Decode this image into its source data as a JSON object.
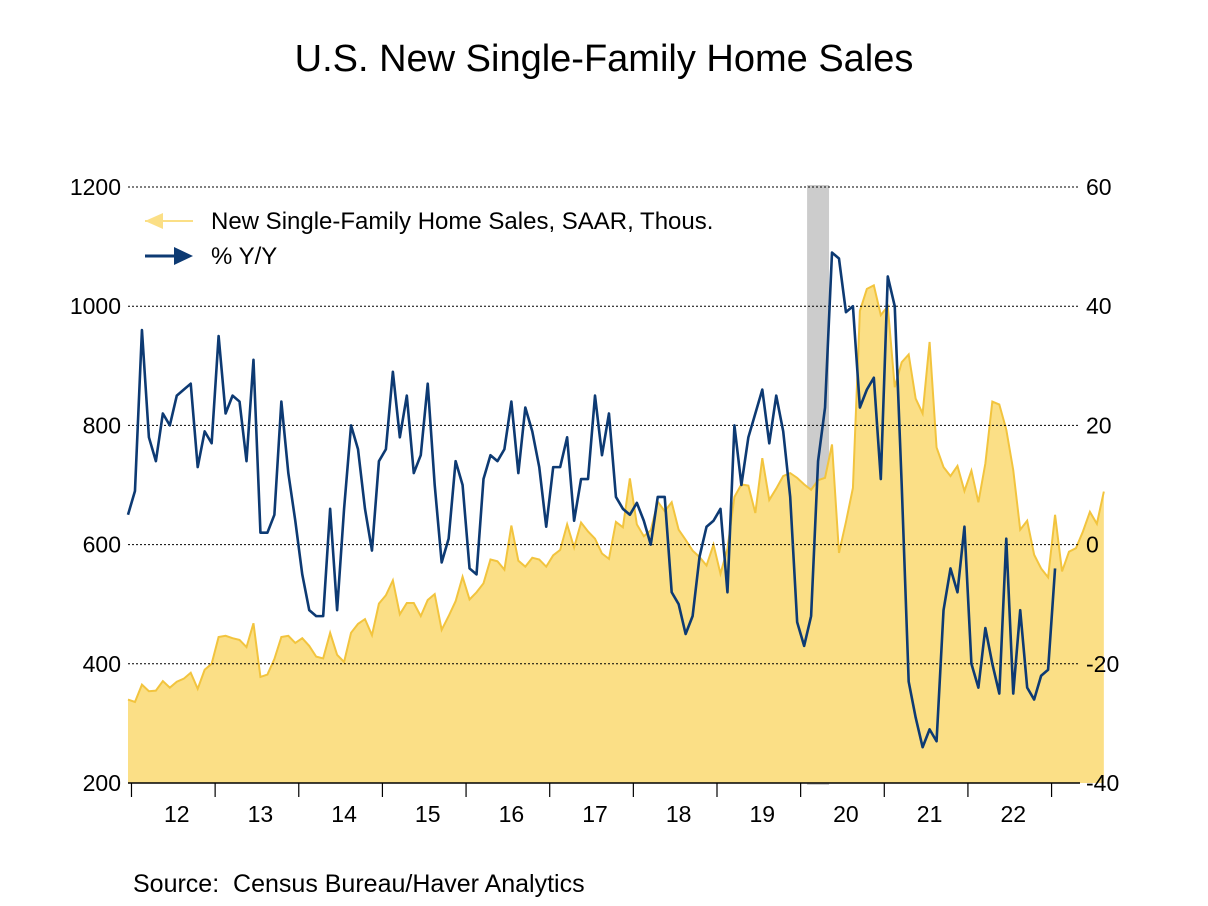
{
  "title": "U.S. New Single-Family Home Sales",
  "source": "Source:  Census Bureau/Haver Analytics",
  "chart_data": {
    "type": "area+line",
    "title": "U.S. New Single-Family Home Sales",
    "x_ticks": [
      "12",
      "13",
      "14",
      "15",
      "16",
      "17",
      "18",
      "19",
      "20",
      "21",
      "22"
    ],
    "left_axis": {
      "ticks": [
        "1200",
        "1000",
        "800",
        "600",
        "400",
        "200"
      ],
      "range": [
        200,
        1200
      ]
    },
    "right_axis": {
      "ticks": [
        "60",
        "40",
        "20",
        "0",
        "-20",
        "-40"
      ],
      "range": [
        -40,
        60
      ]
    },
    "grid": "dotted horizontal",
    "legend_position": "top-left",
    "recession_shade": {
      "start": "2020-02",
      "end": "2020-04",
      "color": "#cccccc"
    },
    "colors": {
      "sales_fill": "#fbdf86",
      "sales_line": "#f2c43e",
      "yoy_line": "#0d3a73"
    },
    "start": "2011-12",
    "series": [
      {
        "name": "New Single-Family Home Sales, SAAR, Thous.",
        "axis": "left",
        "style": "area",
        "values": [
          340,
          336,
          365,
          354,
          355,
          371,
          360,
          370,
          375,
          385,
          358,
          390,
          400,
          445,
          447,
          443,
          440,
          428,
          468,
          378,
          382,
          408,
          445,
          447,
          435,
          443,
          430,
          412,
          409,
          452,
          415,
          403,
          452,
          467,
          475,
          448,
          501,
          515,
          540,
          483,
          502,
          502,
          480,
          507,
          517,
          457,
          480,
          505,
          546,
          508,
          520,
          535,
          575,
          572,
          558,
          632,
          573,
          563,
          578,
          575,
          563,
          582,
          591,
          634,
          595,
          637,
          622,
          610,
          585,
          576,
          638,
          629,
          711,
          634,
          614,
          624,
          672,
          656,
          671,
          625,
          608,
          590,
          579,
          565,
          600,
          551,
          593,
          680,
          701,
          699,
          653,
          745,
          675,
          694,
          715,
          720,
          712,
          701,
          692,
          708,
          712,
          768,
          586,
          638,
          695,
          992,
          1029,
          1035,
          985,
          1000,
          864,
          906,
          919,
          845,
          820,
          940,
          763,
          730,
          715,
          732,
          690,
          724,
          671,
          736,
          840,
          835,
          793,
          725,
          625,
          640,
          583,
          560,
          545,
          650,
          555,
          588,
          594,
          622,
          655,
          635,
          689
        ]
      },
      {
        "name": "% Y/Y",
        "axis": "right",
        "style": "line",
        "values": [
          5,
          9,
          36,
          18,
          14,
          22,
          20,
          25,
          26,
          27,
          13,
          19,
          17,
          35,
          22,
          25,
          24,
          14,
          31,
          2,
          2,
          5,
          24,
          12,
          4,
          -5,
          -11,
          -12,
          -12,
          6,
          -11,
          6,
          20,
          16,
          6,
          -1,
          14,
          16,
          29,
          18,
          25,
          12,
          15,
          27,
          10,
          -3,
          1,
          14,
          10,
          -4,
          -5,
          11,
          15,
          14,
          16,
          24,
          12,
          23,
          19,
          13,
          3,
          13,
          13,
          18,
          4,
          11,
          11,
          25,
          15,
          22,
          8,
          6,
          5,
          7,
          4,
          0,
          8,
          8,
          -8,
          -10,
          -15,
          -12,
          -2,
          3,
          4,
          6,
          -8,
          20,
          10,
          18,
          22,
          26,
          17,
          25,
          19,
          8,
          -13,
          -17,
          -12,
          14,
          23,
          49,
          48,
          39,
          40,
          23,
          26,
          28,
          11,
          45,
          40,
          10,
          -23,
          -29,
          -34,
          -31,
          -33,
          -11,
          -4,
          -8,
          3,
          -20,
          -24,
          -14,
          -20,
          -25,
          1,
          -25,
          -11,
          -24,
          -26,
          -22,
          -21,
          -4
        ]
      }
    ]
  }
}
